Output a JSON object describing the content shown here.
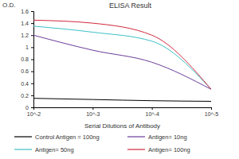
{
  "chart_data": {
    "type": "line",
    "title": "ELISA Result",
    "y_label": "O.D.",
    "x_label": "Serial Dilutions of Antibody",
    "log": "x",
    "x": [
      0.01,
      0.001,
      0.0001,
      1e-05
    ],
    "xlim": [
      0.01,
      1e-05
    ],
    "xticks": [
      {
        "value": 0.01,
        "label": "10^-2"
      },
      {
        "value": 0.001,
        "label": "10^-3"
      },
      {
        "value": 0.0001,
        "label": "10^-4"
      },
      {
        "value": 1e-05,
        "label": "10^-5"
      }
    ],
    "ylim": [
      0,
      1.6
    ],
    "yticks": [
      0,
      0.2,
      0.4,
      0.6,
      0.8,
      1,
      1.2,
      1.4,
      1.6
    ],
    "grid": false,
    "legend": "bottom",
    "series": [
      {
        "name": "Control Antigen = 100ng",
        "color": "#000000",
        "values": [
          0.15,
          0.13,
          0.11,
          0.1
        ]
      },
      {
        "name": "Antigen= 10ng",
        "color": "#6a3d9a",
        "values": [
          1.2,
          0.95,
          0.75,
          0.3
        ]
      },
      {
        "name": "Antigen= 50ng",
        "color": "#3cc0c8",
        "values": [
          1.35,
          1.25,
          1.1,
          0.3
        ]
      },
      {
        "name": "Antigen= 100ng",
        "color": "#d0283c",
        "values": [
          1.45,
          1.4,
          1.2,
          0.3
        ]
      }
    ]
  }
}
